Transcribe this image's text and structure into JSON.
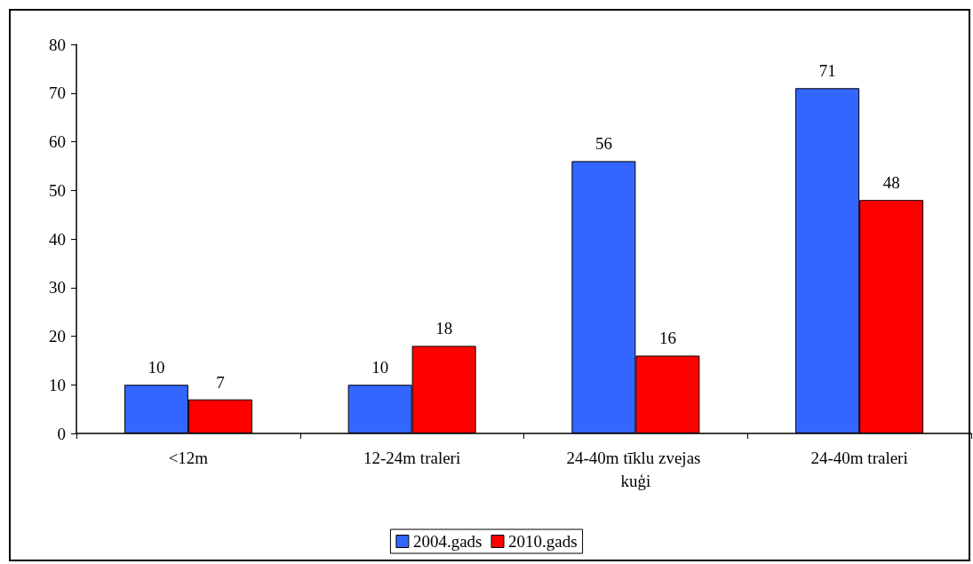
{
  "chart_data": {
    "type": "bar",
    "categories": [
      "<12m",
      "12-24m traleri",
      "24-40m tīklu zvejas kuģi",
      "24-40m traleri"
    ],
    "series": [
      {
        "name": "2004.gads",
        "color": "#3366ff",
        "values": [
          10,
          10,
          56,
          71
        ]
      },
      {
        "name": "2010.gads",
        "color": "#ff0000",
        "values": [
          7,
          18,
          16,
          48
        ]
      }
    ],
    "ylim": [
      0,
      80
    ],
    "yticks": [
      0,
      10,
      20,
      30,
      40,
      50,
      60,
      70,
      80
    ],
    "grid": false,
    "legend": "bottom",
    "data_labels": true
  }
}
